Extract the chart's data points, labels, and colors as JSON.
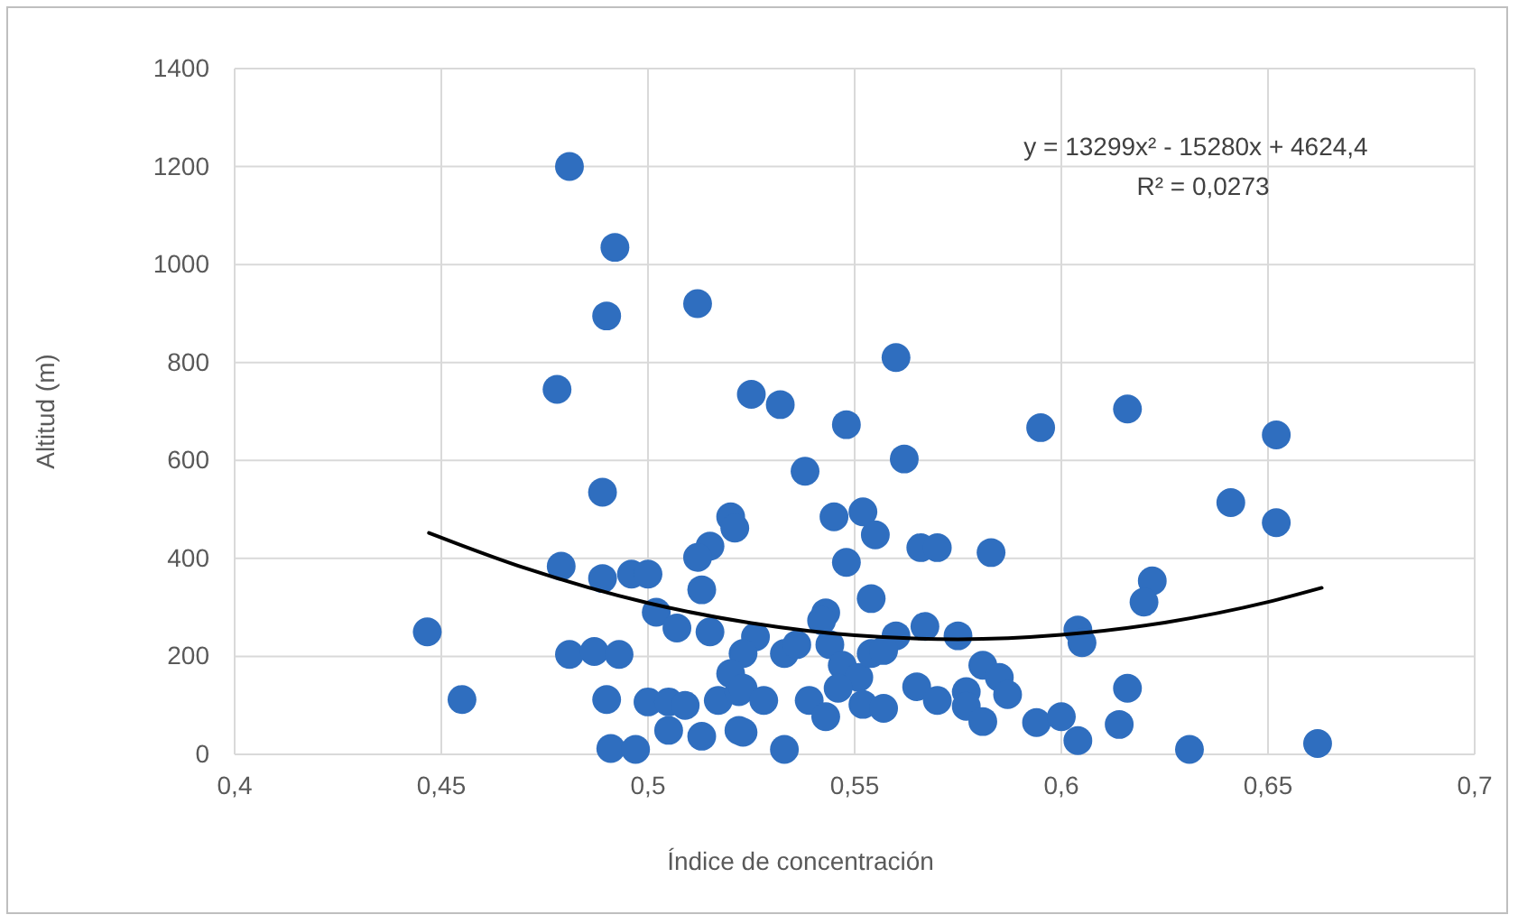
{
  "chart_data": {
    "type": "scatter",
    "xlabel": "Índice de concentración",
    "ylabel": "Altitud (m)",
    "xlim": [
      0.4,
      0.7
    ],
    "xticks": [
      {
        "value": 0.4,
        "label": "0,4"
      },
      {
        "value": 0.45,
        "label": "0,45"
      },
      {
        "value": 0.5,
        "label": "0,5"
      },
      {
        "value": 0.55,
        "label": "0,55"
      },
      {
        "value": 0.6,
        "label": "0,6"
      },
      {
        "value": 0.65,
        "label": "0,65"
      },
      {
        "value": 0.7,
        "label": "0,7"
      }
    ],
    "ylim": [
      0,
      1400
    ],
    "yticks": [
      0,
      200,
      400,
      600,
      800,
      1000,
      1200,
      1400
    ],
    "grid": true,
    "marker": "circle",
    "annotations": [
      "y = 13299x² - 15280x + 4624,4",
      "R² = 0,0273"
    ],
    "series": [
      {
        "color": "#2f6ebf",
        "x": [
          0.481,
          0.492,
          0.49,
          0.512,
          0.478,
          0.525,
          0.489,
          0.52,
          0.521,
          0.515,
          0.512,
          0.479,
          0.489,
          0.496,
          0.5,
          0.513,
          0.502,
          0.507,
          0.515,
          0.4466,
          0.481,
          0.487,
          0.493,
          0.455,
          0.49,
          0.5,
          0.505,
          0.509,
          0.505,
          0.513,
          0.491,
          0.497,
          0.522,
          0.517,
          0.522,
          0.56,
          0.532,
          0.548,
          0.595,
          0.538,
          0.562,
          0.545,
          0.552,
          0.555,
          0.548,
          0.566,
          0.57,
          0.583,
          0.554,
          0.543,
          0.542,
          0.56,
          0.567,
          0.575,
          0.604,
          0.605,
          0.526,
          0.523,
          0.533,
          0.536,
          0.544,
          0.547,
          0.551,
          0.554,
          0.557,
          0.52,
          0.523,
          0.528,
          0.539,
          0.543,
          0.546,
          0.552,
          0.557,
          0.565,
          0.57,
          0.577,
          0.577,
          0.581,
          0.585,
          0.587,
          0.581,
          0.594,
          0.6,
          0.604,
          0.533,
          0.523,
          0.616,
          0.652,
          0.641,
          0.652,
          0.622,
          0.62,
          0.616,
          0.614,
          0.631,
          0.662
        ],
        "values": [
          1200,
          1035,
          895,
          920,
          745,
          735,
          535,
          485,
          462,
          425,
          402,
          384,
          359,
          368,
          368,
          336,
          290,
          258,
          250,
          250,
          204,
          210,
          204,
          112,
          112,
          107,
          107,
          100,
          49,
          37,
          12,
          10,
          49,
          110,
          128,
          810,
          714,
          673,
          667,
          578,
          603,
          485,
          495,
          448,
          392,
          422,
          422,
          412,
          318,
          289,
          273,
          242,
          261,
          242,
          254,
          228,
          240,
          206,
          206,
          224,
          224,
          182,
          157,
          206,
          212,
          165,
          135,
          110,
          110,
          77,
          135,
          102,
          94,
          138,
          110,
          128,
          98,
          182,
          157,
          122,
          67,
          65,
          77,
          28,
          10,
          45,
          705,
          652,
          514,
          473,
          354,
          311,
          135,
          61,
          10,
          22
        ]
      },
      {
        "type": "line",
        "color": "#000000",
        "marker": "none",
        "x": [
          0.447,
          0.47,
          0.5,
          0.525,
          0.55,
          0.575,
          0.6,
          0.625,
          0.65,
          0.663
        ],
        "values": [
          452,
          381,
          309,
          268,
          243,
          235,
          244,
          269,
          311,
          340
        ]
      }
    ]
  }
}
